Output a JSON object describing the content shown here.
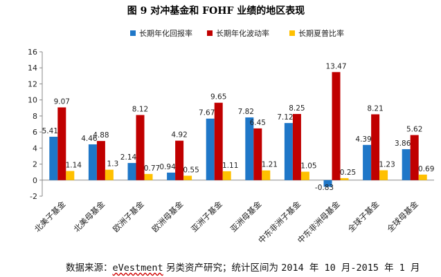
{
  "chart_data": {
    "type": "bar",
    "title": "图 9 对冲基金和 FOHF 业绩的地区表现",
    "categories": [
      "北美子基金",
      "北美母基金",
      "欧洲子基金",
      "欧洲母基金",
      "亚洲子基金",
      "亚洲母基金",
      "中东非洲子基金",
      "中东非洲母基金",
      "全球子基金",
      "全球母基金"
    ],
    "series": [
      {
        "name": "长期年化回报率",
        "color": "#1f77c8",
        "values": [
          5.41,
          4.46,
          2.14,
          0.94,
          7.67,
          7.82,
          7.12,
          -0.83,
          4.39,
          3.86
        ]
      },
      {
        "name": "长期年化波动率",
        "color": "#c00000",
        "values": [
          9.07,
          4.88,
          8.12,
          4.92,
          9.65,
          6.45,
          8.25,
          13.47,
          8.21,
          5.62
        ]
      },
      {
        "name": "长期夏普比率",
        "color": "#ffc000",
        "values": [
          1.14,
          1.3,
          0.77,
          0.55,
          1.11,
          1.21,
          1.05,
          0.25,
          1.23,
          0.69
        ]
      }
    ],
    "labels": [
      [
        "5.41",
        "4.46",
        "2.14",
        "0.94",
        "7.67",
        "7.82",
        "7.12",
        "-0.83",
        "4.39",
        "3.86"
      ],
      [
        "9.07",
        "4.88",
        "8.12",
        "4.92",
        "9.65",
        "6.45",
        "8.25",
        "13.47",
        "8.21",
        "5.62"
      ],
      [
        "1.14",
        "1.3",
        "0.77",
        "0.55",
        "1.11",
        "1.21",
        "1.05",
        "0.25",
        "1.23",
        "0.69"
      ]
    ],
    "ylim": [
      -2,
      16
    ],
    "yticks": [
      -2,
      0,
      2,
      4,
      6,
      8,
      10,
      12,
      14,
      16
    ],
    "grid": false,
    "legend": "top"
  },
  "source_note": {
    "prefix": "数据来源：",
    "brand": "eVestment",
    "middle": " 另类资产研究；统计区间为 ",
    "period": "2014 年 10 月-2015 年 1 月"
  }
}
